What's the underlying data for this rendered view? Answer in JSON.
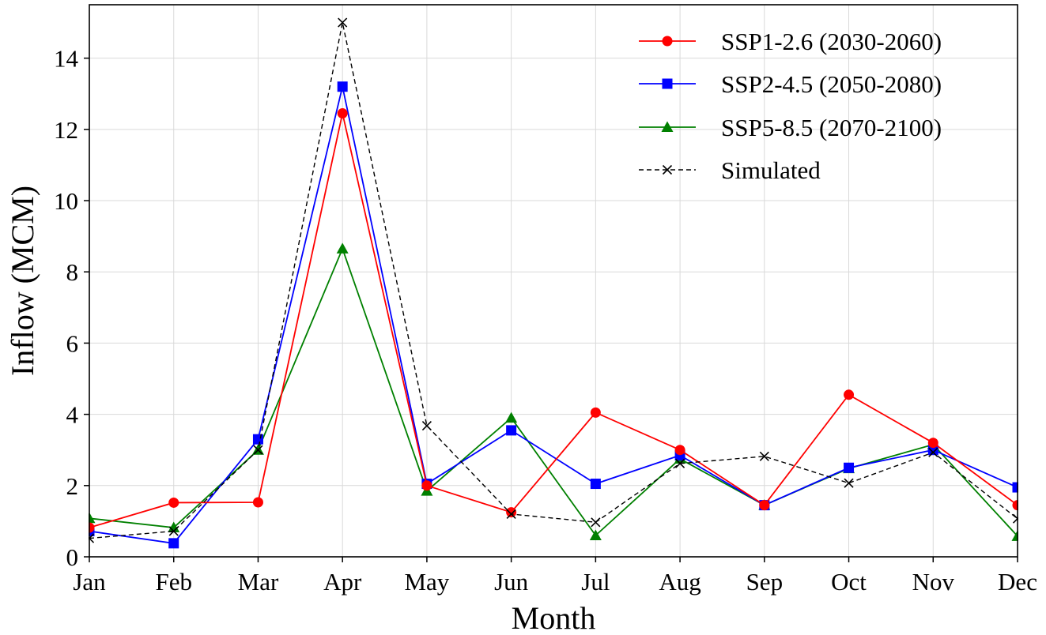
{
  "chart_data": {
    "type": "line",
    "title": "",
    "xlabel": "Month",
    "ylabel": "Inflow (MCM)",
    "categories": [
      "Jan",
      "Feb",
      "Mar",
      "Apr",
      "May",
      "Jun",
      "Jul",
      "Aug",
      "Sep",
      "Oct",
      "Nov",
      "Dec"
    ],
    "ylim": [
      0,
      15.5
    ],
    "yticks": [
      0,
      2,
      4,
      6,
      8,
      10,
      12,
      14
    ],
    "grid": true,
    "legend_position": "top-right",
    "series": [
      {
        "name": "SSP1-2.6 (2030-2060)",
        "color": "#ff0000",
        "marker": "circle",
        "linestyle": "solid",
        "values": [
          0.82,
          1.52,
          1.53,
          12.45,
          2.0,
          1.25,
          4.05,
          3.0,
          1.45,
          4.55,
          3.2,
          1.45
        ]
      },
      {
        "name": "SSP2-4.5 (2050-2080)",
        "color": "#0000ff",
        "marker": "square",
        "linestyle": "solid",
        "values": [
          0.72,
          0.38,
          3.3,
          13.2,
          2.05,
          3.55,
          2.05,
          2.85,
          1.45,
          2.5,
          3.0,
          1.95
        ]
      },
      {
        "name": "SSP5-8.5 (2070-2100)",
        "color": "#008000",
        "marker": "triangle",
        "linestyle": "solid",
        "values": [
          1.08,
          0.82,
          3.0,
          8.65,
          1.85,
          3.9,
          0.6,
          2.75,
          1.45,
          2.48,
          3.15,
          0.58
        ]
      },
      {
        "name": "Simulated",
        "color": "#000000",
        "marker": "x",
        "linestyle": "dashed",
        "values": [
          0.52,
          0.72,
          3.0,
          15.0,
          3.68,
          1.2,
          0.97,
          2.62,
          2.82,
          2.07,
          2.93,
          1.07
        ]
      }
    ]
  }
}
